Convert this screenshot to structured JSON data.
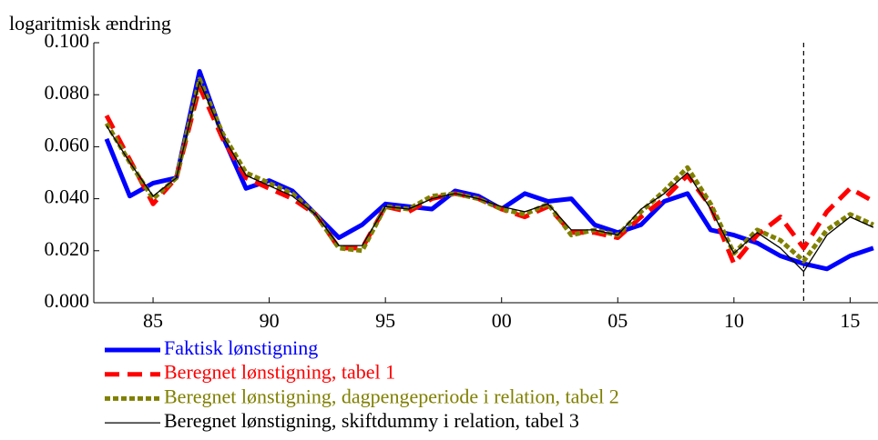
{
  "chart_data": {
    "type": "line",
    "y_label": "logaritmisk ændring",
    "x": [
      1983,
      1984,
      1985,
      1986,
      1987,
      1988,
      1989,
      1990,
      1991,
      1992,
      1993,
      1994,
      1995,
      1996,
      1997,
      1998,
      1999,
      2000,
      2001,
      2002,
      2003,
      2004,
      2005,
      2006,
      2007,
      2008,
      2009,
      2010,
      2011,
      2012,
      2013,
      2014,
      2015,
      2016
    ],
    "xlim": [
      1982.45,
      2016.2
    ],
    "xticks": [
      {
        "value": 1985,
        "label": "85"
      },
      {
        "value": 1990,
        "label": "90"
      },
      {
        "value": 1995,
        "label": "95"
      },
      {
        "value": 2000,
        "label": "00"
      },
      {
        "value": 2005,
        "label": "05"
      },
      {
        "value": 2010,
        "label": "10"
      },
      {
        "value": 2015,
        "label": "15"
      }
    ],
    "ylim": [
      0,
      0.1
    ],
    "yticks": [
      {
        "value": 0,
        "label": "0.000"
      },
      {
        "value": 0.02,
        "label": "0.020"
      },
      {
        "value": 0.04,
        "label": "0.040"
      },
      {
        "value": 0.06,
        "label": "0.060"
      },
      {
        "value": 0.08,
        "label": "0.080"
      },
      {
        "value": 0.1,
        "label": "0.100"
      }
    ],
    "reference_line": {
      "x": 2013
    },
    "series": [
      {
        "name": "Faktisk lønstigning",
        "color": "#0000ff",
        "style": "solid",
        "width": 5,
        "values": [
          0.063,
          0.041,
          0.046,
          0.048,
          0.089,
          0.064,
          0.044,
          0.047,
          0.043,
          0.034,
          0.025,
          0.03,
          0.038,
          0.037,
          0.036,
          0.043,
          0.041,
          0.036,
          0.042,
          0.039,
          0.04,
          0.03,
          0.027,
          0.03,
          0.039,
          0.042,
          0.028,
          0.026,
          0.023,
          0.018,
          0.015,
          0.013,
          0.018,
          0.021
        ]
      },
      {
        "name": "Beregnet lønstigning, tabel 1",
        "color": "#ff0000",
        "style": "dashed",
        "width": 5,
        "values": [
          0.072,
          0.055,
          0.038,
          0.048,
          0.083,
          0.063,
          0.048,
          0.044,
          0.04,
          0.034,
          0.021,
          0.021,
          0.037,
          0.035,
          0.04,
          0.042,
          0.04,
          0.036,
          0.033,
          0.037,
          0.027,
          0.027,
          0.025,
          0.033,
          0.04,
          0.049,
          0.037,
          0.015,
          0.026,
          0.033,
          0.021,
          0.035,
          0.044,
          0.039
        ]
      },
      {
        "name": "Beregnet lønstigning, dagpengeperiode i relation, tabel 2",
        "color": "#808000",
        "style": "dotted",
        "width": 5,
        "values": [
          0.069,
          0.054,
          0.04,
          0.048,
          0.086,
          0.065,
          0.05,
          0.046,
          0.042,
          0.034,
          0.021,
          0.02,
          0.037,
          0.036,
          0.041,
          0.042,
          0.04,
          0.036,
          0.034,
          0.038,
          0.026,
          0.028,
          0.026,
          0.035,
          0.043,
          0.052,
          0.038,
          0.019,
          0.028,
          0.024,
          0.016,
          0.028,
          0.034,
          0.03
        ]
      },
      {
        "name": "Beregnet lønstigning, skiftdummy i relation, tabel 3",
        "color": "#000000",
        "style": "solid",
        "width": 1.3,
        "values": [
          0.068,
          0.054,
          0.041,
          0.048,
          0.085,
          0.064,
          0.049,
          0.045,
          0.041,
          0.034,
          0.022,
          0.022,
          0.037,
          0.036,
          0.04,
          0.042,
          0.04,
          0.037,
          0.035,
          0.038,
          0.028,
          0.028,
          0.026,
          0.036,
          0.042,
          0.05,
          0.036,
          0.019,
          0.027,
          0.021,
          0.012,
          0.026,
          0.033,
          0.029
        ]
      }
    ]
  }
}
